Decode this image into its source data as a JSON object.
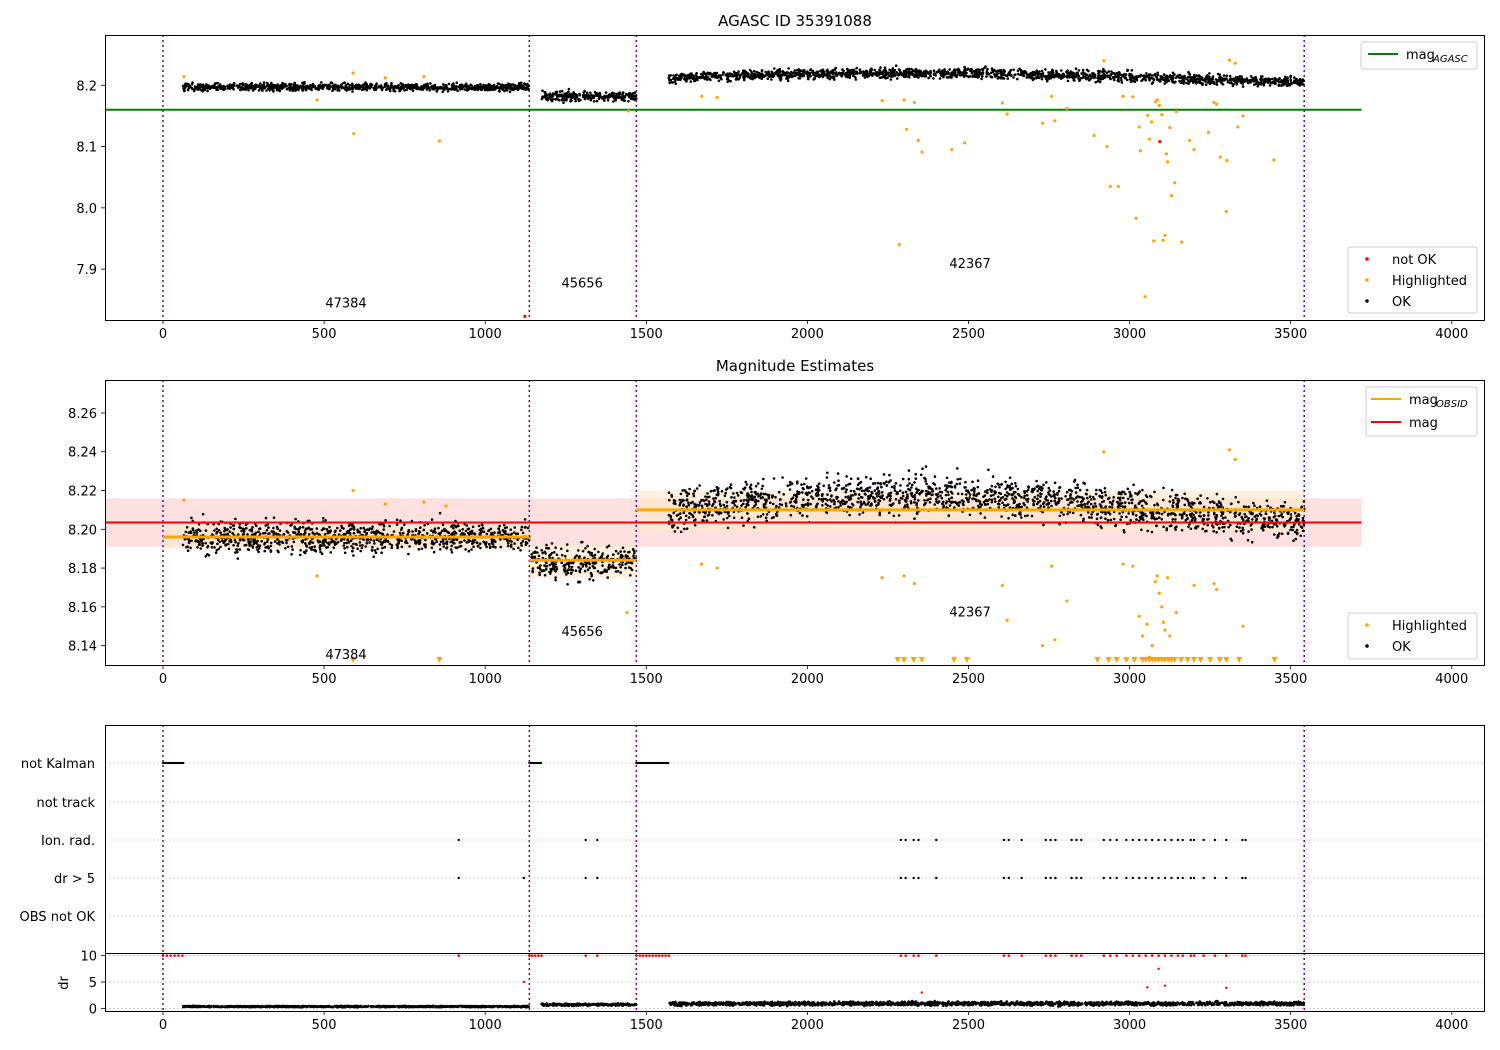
{
  "colors": {
    "ok": "#000000",
    "highlighted": "#ffa500",
    "not_ok": "#ff0000",
    "mag_agasc": "#008000",
    "mag": "#ff0000",
    "mag_obsid": "#ffa500",
    "obs_boundary": "#800080",
    "mag_band": "#ffd6d6",
    "obsid_band": "#ffe8c8"
  },
  "chart_data": [
    {
      "id": "top",
      "type": "scatter",
      "title": "AGASC ID 35391088",
      "xlim": [
        -180,
        4100
      ],
      "ylim": [
        7.817,
        8.282
      ],
      "xticks": [
        0,
        500,
        1000,
        1500,
        2000,
        2500,
        3000,
        3500,
        4000
      ],
      "yticks": [
        7.9,
        8.0,
        8.1,
        8.2
      ],
      "ytick_labels": [
        "7.9",
        "8.0",
        "8.1",
        "8.2"
      ],
      "obs_boundaries": [
        0,
        1137,
        1469,
        3542
      ],
      "obsid_labels": [
        {
          "text": "47384",
          "x": 568,
          "y": 7.837
        },
        {
          "text": "45656",
          "x": 1301,
          "y": 7.87
        },
        {
          "text": "42367",
          "x": 2505,
          "y": 7.902
        }
      ],
      "mag_agasc": {
        "value": 8.16,
        "x_range": [
          -180,
          3720
        ]
      },
      "legend_upper": [
        {
          "label_main": "mag",
          "label_sub": "AGASC",
          "kind": "line",
          "color": "#008000"
        }
      ],
      "legend_lower": [
        {
          "label": "not OK",
          "color": "#ff0000"
        },
        {
          "label": "Highlighted",
          "color": "#ffa500"
        },
        {
          "label": "OK",
          "color": "#000000"
        }
      ],
      "segments": [
        {
          "x_start": 62,
          "x_end": 1137,
          "mean": 8.197,
          "spread": 0.006,
          "slope": 0
        },
        {
          "x_start": 1175,
          "x_end": 1469,
          "mean": 8.182,
          "spread": 0.008,
          "slope": 0
        },
        {
          "x_start": 1570,
          "x_end": 3542,
          "mean": 8.212,
          "spread": 0.008,
          "slope": 0.008
        }
      ],
      "highlighted_points": [
        [
          65,
          8.214
        ],
        [
          478,
          8.176
        ],
        [
          590,
          8.22
        ],
        [
          592,
          8.121
        ],
        [
          690,
          8.212
        ],
        [
          810,
          8.214
        ],
        [
          858,
          8.109
        ],
        [
          1445,
          8.158
        ],
        [
          1672,
          8.182
        ],
        [
          1720,
          8.18
        ],
        [
          2232,
          8.175
        ],
        [
          2285,
          7.94
        ],
        [
          2300,
          8.176
        ],
        [
          2308,
          8.128
        ],
        [
          2332,
          8.172
        ],
        [
          2344,
          8.11
        ],
        [
          2356,
          8.091
        ],
        [
          2448,
          8.095
        ],
        [
          2488,
          8.106
        ],
        [
          2605,
          8.171
        ],
        [
          2620,
          8.153
        ],
        [
          2730,
          8.138
        ],
        [
          2758,
          8.182
        ],
        [
          2768,
          8.142
        ],
        [
          2805,
          8.162
        ],
        [
          2890,
          8.118
        ],
        [
          2920,
          8.24
        ],
        [
          2930,
          8.1
        ],
        [
          2940,
          8.035
        ],
        [
          2965,
          8.035
        ],
        [
          2980,
          8.182
        ],
        [
          3010,
          8.181
        ],
        [
          3020,
          7.983
        ],
        [
          3030,
          8.132
        ],
        [
          3034,
          8.093
        ],
        [
          3048,
          7.855
        ],
        [
          3056,
          8.151
        ],
        [
          3062,
          8.112
        ],
        [
          3068,
          8.14
        ],
        [
          3075,
          7.946
        ],
        [
          3080,
          8.173
        ],
        [
          3086,
          8.176
        ],
        [
          3092,
          8.167
        ],
        [
          3100,
          8.152
        ],
        [
          3104,
          7.947
        ],
        [
          3110,
          7.955
        ],
        [
          3114,
          8.088
        ],
        [
          3118,
          8.075
        ],
        [
          3125,
          8.131
        ],
        [
          3130,
          8.02
        ],
        [
          3140,
          8.041
        ],
        [
          3145,
          8.157
        ],
        [
          3162,
          7.944
        ],
        [
          3186,
          8.11
        ],
        [
          3200,
          8.095
        ],
        [
          3245,
          8.123
        ],
        [
          3262,
          8.172
        ],
        [
          3270,
          8.169
        ],
        [
          3282,
          8.083
        ],
        [
          3300,
          7.994
        ],
        [
          3302,
          8.077
        ],
        [
          3310,
          8.241
        ],
        [
          3328,
          8.236
        ],
        [
          3336,
          8.132
        ],
        [
          3352,
          8.15
        ],
        [
          3448,
          8.078
        ]
      ],
      "not_ok_points": [
        [
          1123,
          7.823
        ],
        [
          3094,
          8.108
        ]
      ]
    },
    {
      "id": "middle",
      "type": "scatter",
      "title": "Magnitude Estimates",
      "xlim": [
        -180,
        4100
      ],
      "ylim": [
        8.13,
        8.277
      ],
      "xticks": [
        0,
        500,
        1000,
        1500,
        2000,
        2500,
        3000,
        3500,
        4000
      ],
      "yticks": [
        8.14,
        8.16,
        8.18,
        8.2,
        8.22,
        8.24,
        8.26
      ],
      "ytick_labels": [
        "8.14",
        "8.16",
        "8.18",
        "8.20",
        "8.22",
        "8.24",
        "8.26"
      ],
      "obs_boundaries": [
        0,
        1137,
        1469,
        3542
      ],
      "obsid_labels": [
        {
          "text": "47384",
          "x": 568,
          "y": 8.133
        },
        {
          "text": "45656",
          "x": 1301,
          "y": 8.145
        },
        {
          "text": "42367",
          "x": 2505,
          "y": 8.155
        }
      ],
      "mag": {
        "value": 8.2035,
        "band": [
          8.191,
          8.216
        ],
        "x_range": [
          -180,
          3720
        ]
      },
      "mag_obsid": [
        {
          "x_start": 0,
          "x_end": 1137,
          "value": 8.196,
          "band": [
            8.19,
            8.202
          ]
        },
        {
          "x_start": 1137,
          "x_end": 1469,
          "value": 8.184,
          "band": [
            8.175,
            8.192
          ]
        },
        {
          "x_start": 1469,
          "x_end": 3542,
          "value": 8.21,
          "band": [
            8.199,
            8.22
          ]
        }
      ],
      "legend_upper": [
        {
          "label_main": "mag",
          "label_sub": "OBSID",
          "kind": "line",
          "color": "#ffa500"
        },
        {
          "label_main": "mag",
          "label_sub": "",
          "kind": "line",
          "color": "#ff0000"
        }
      ],
      "legend_lower": [
        {
          "label": "Highlighted",
          "color": "#ffa500"
        },
        {
          "label": "OK",
          "color": "#000000"
        }
      ],
      "segments": [
        {
          "x_start": 62,
          "x_end": 1137,
          "mean": 8.196,
          "spread": 0.008,
          "slope": 0
        },
        {
          "x_start": 1140,
          "x_end": 1469,
          "mean": 8.183,
          "spread": 0.009,
          "slope": 0
        },
        {
          "x_start": 1570,
          "x_end": 3542,
          "mean": 8.21,
          "spread": 0.01,
          "slope": 0.008
        }
      ],
      "highlighted_points": [
        [
          65,
          8.215
        ],
        [
          478,
          8.176
        ],
        [
          590,
          8.22
        ],
        [
          690,
          8.213
        ],
        [
          810,
          8.214
        ],
        [
          878,
          8.212
        ],
        [
          1440,
          8.157
        ],
        [
          1672,
          8.182
        ],
        [
          1720,
          8.18
        ],
        [
          2232,
          8.175
        ],
        [
          2300,
          8.176
        ],
        [
          2332,
          8.172
        ],
        [
          2605,
          8.171
        ],
        [
          2620,
          8.153
        ],
        [
          2730,
          8.14
        ],
        [
          2758,
          8.181
        ],
        [
          2768,
          8.143
        ],
        [
          2805,
          8.163
        ],
        [
          2920,
          8.24
        ],
        [
          2980,
          8.182
        ],
        [
          3010,
          8.181
        ],
        [
          3030,
          8.155
        ],
        [
          3040,
          8.145
        ],
        [
          3054,
          8.151
        ],
        [
          3062,
          8.134
        ],
        [
          3070,
          8.14
        ],
        [
          3080,
          8.173
        ],
        [
          3086,
          8.176
        ],
        [
          3092,
          8.167
        ],
        [
          3100,
          8.16
        ],
        [
          3105,
          8.152
        ],
        [
          3110,
          8.148
        ],
        [
          3118,
          8.175
        ],
        [
          3125,
          8.145
        ],
        [
          3145,
          8.157
        ],
        [
          3200,
          8.171
        ],
        [
          3262,
          8.172
        ],
        [
          3270,
          8.169
        ],
        [
          3310,
          8.241
        ],
        [
          3328,
          8.236
        ],
        [
          3352,
          8.15
        ]
      ],
      "clipped_markers": [
        590,
        858,
        2280,
        2300,
        2330,
        2355,
        2455,
        2495,
        2900,
        2935,
        2960,
        2990,
        3015,
        3040,
        3050,
        3060,
        3070,
        3080,
        3090,
        3100,
        3110,
        3120,
        3130,
        3140,
        3160,
        3180,
        3200,
        3220,
        3250,
        3280,
        3300,
        3340,
        3450
      ]
    },
    {
      "id": "flags",
      "type": "scatter",
      "title": "",
      "xlim": [
        -180,
        4100
      ],
      "categories": [
        "not Kalman",
        "not track",
        "Ion. rad.",
        "dr > 5",
        "OBS not OK"
      ],
      "flags": {
        "not Kalman": [
          [
            0,
            65
          ],
          [
            1137,
            1175
          ],
          [
            1469,
            1570
          ]
        ],
        "not track": [],
        "Ion. rad.": [
          918,
          1312,
          1348,
          2290,
          2305,
          2330,
          2345,
          2400,
          2610,
          2625,
          2665,
          2740,
          2755,
          2770,
          2820,
          2835,
          2850,
          2920,
          2940,
          2960,
          2990,
          3010,
          3030,
          3050,
          3070,
          3090,
          3110,
          3130,
          3150,
          3165,
          3190,
          3200,
          3230,
          3265,
          3300,
          3350,
          3360
        ],
        "dr > 5": [
          918,
          1120,
          1312,
          1348,
          2290,
          2305,
          2330,
          2345,
          2400,
          2610,
          2625,
          2665,
          2740,
          2755,
          2770,
          2820,
          2835,
          2850,
          2920,
          2940,
          2960,
          2990,
          3010,
          3030,
          3050,
          3070,
          3090,
          3110,
          3130,
          3150,
          3165,
          3190,
          3200,
          3230,
          3265,
          3300,
          3350,
          3360
        ],
        "OBS not OK": []
      },
      "obs_boundaries": [
        0,
        1137,
        1469,
        3542
      ]
    },
    {
      "id": "dr",
      "type": "scatter",
      "ylabel": "dr",
      "xlim": [
        -180,
        4100
      ],
      "ylim": [
        -0.5,
        10.5
      ],
      "xticks": [
        0,
        500,
        1000,
        1500,
        2000,
        2500,
        3000,
        3500,
        4000
      ],
      "yticks": [
        0,
        5,
        10
      ],
      "ytick_labels": [
        "0",
        "5",
        "10"
      ],
      "obs_boundaries": [
        0,
        1137,
        1469,
        3542
      ],
      "capped_value": 10,
      "capped_x": [
        0,
        12,
        24,
        36,
        48,
        60,
        918,
        1137,
        1145,
        1155,
        1165,
        1175,
        1312,
        1348,
        1469,
        1480,
        1490,
        1500,
        1510,
        1520,
        1530,
        1540,
        1550,
        1560,
        1570,
        2290,
        2305,
        2330,
        2345,
        2400,
        2610,
        2625,
        2665,
        2740,
        2755,
        2770,
        2820,
        2835,
        2850,
        2920,
        2940,
        2960,
        2990,
        3010,
        3030,
        3050,
        3070,
        3090,
        3110,
        3130,
        3150,
        3165,
        3190,
        3200,
        3230,
        3265,
        3300,
        3350,
        3360
      ],
      "outliers": [
        [
          2355,
          3.0
        ],
        [
          3055,
          4.0
        ],
        [
          3090,
          7.5
        ],
        [
          3110,
          4.3
        ],
        [
          3300,
          3.9
        ],
        [
          1120,
          5.0
        ]
      ],
      "segments": [
        {
          "x_start": 62,
          "x_end": 1137,
          "mean": 0.35,
          "spread": 0.12
        },
        {
          "x_start": 1175,
          "x_end": 1469,
          "mean": 0.7,
          "spread": 0.2
        },
        {
          "x_start": 1570,
          "x_end": 3542,
          "mean": 0.9,
          "spread": 0.35
        }
      ]
    }
  ]
}
